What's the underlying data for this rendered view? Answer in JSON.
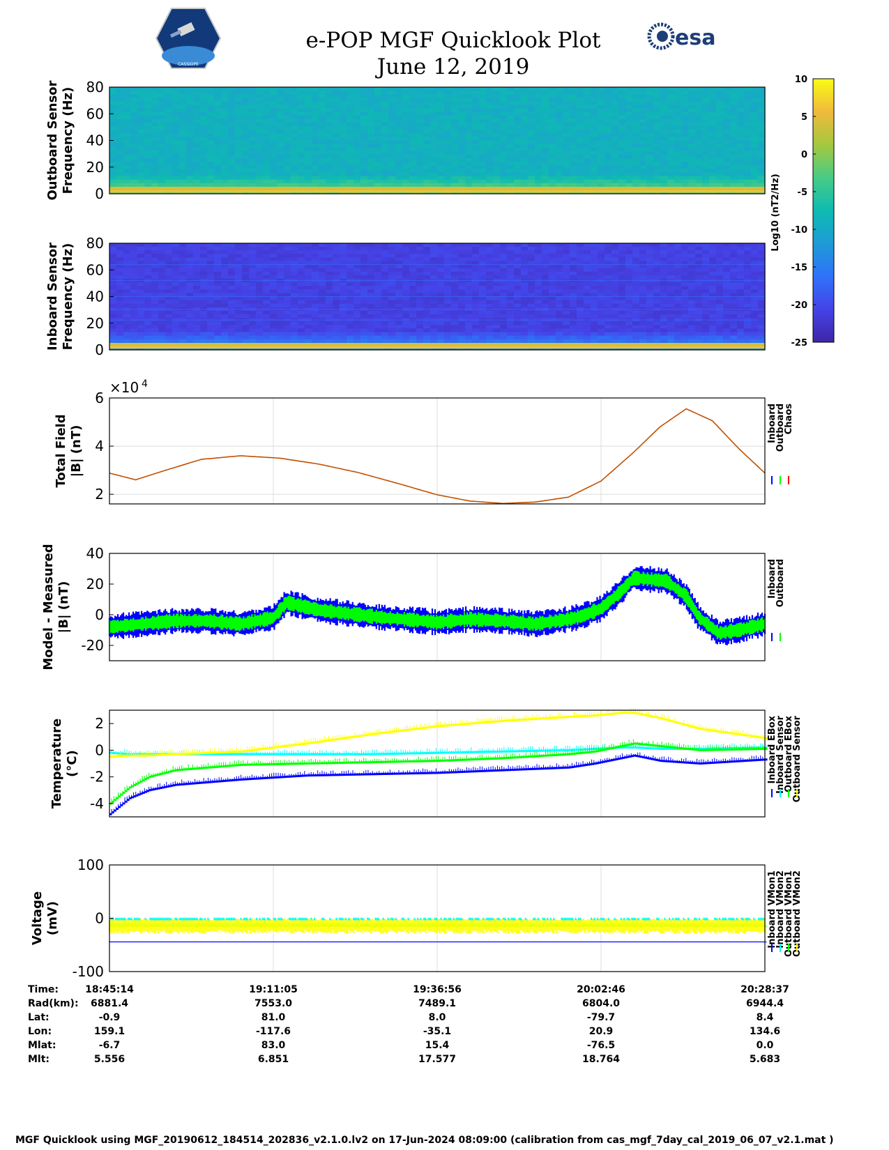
{
  "header": {
    "title": "e-POP MGF Quicklook Plot",
    "date": "June 12, 2019",
    "logo_left_text": "CASSIOPE",
    "logo_right_text": "esa"
  },
  "colorbar": {
    "ticks": [
      "10",
      "5",
      "0",
      "-5",
      "-10",
      "-15",
      "-20",
      "-25"
    ],
    "label": "Log10 (nT2/Hz)",
    "colormap": [
      "#3e26a8",
      "#4543e8",
      "#2f72f9",
      "#1e9bd6",
      "#0ebbb1",
      "#48cb86",
      "#a5c83f",
      "#f0ba3c",
      "#f9fb14"
    ]
  },
  "chart_data": [
    {
      "type": "heatmap",
      "id": "outboard-spectrogram",
      "ylabel": "Outboard Sensor Frequency (Hz)",
      "ylabel_lines": [
        "Outboard Sensor",
        "Frequency (Hz)"
      ],
      "yticks": [
        "80",
        "60",
        "40",
        "20",
        "0"
      ],
      "ylim": [
        0,
        80
      ],
      "background_level": -9,
      "low_freq_band_level": 6
    },
    {
      "type": "heatmap",
      "id": "inboard-spectrogram",
      "ylabel": "Inboard Sensor Frequency (Hz)",
      "ylabel_lines": [
        "Inboard Sensor",
        "Frequency (Hz)"
      ],
      "yticks": [
        "80",
        "60",
        "40",
        "20",
        "0"
      ],
      "ylim": [
        0,
        80
      ],
      "background_level": -21,
      "low_freq_band_level": 6
    },
    {
      "type": "line",
      "id": "total-field",
      "ylabel_lines": [
        "Total Field",
        "|B| (nT)"
      ],
      "exponent_label": "×10",
      "exponent_power": "4",
      "yticks": [
        "6",
        "4",
        "2"
      ],
      "ylim": [
        1.6,
        6
      ],
      "legend": [
        "Inboard",
        "Outboard",
        "Chaos"
      ],
      "legend_colors": [
        "#0000ff",
        "#00ff00",
        "#ff0000"
      ],
      "x": [
        0,
        0.04,
        0.08,
        0.14,
        0.2,
        0.26,
        0.32,
        0.38,
        0.44,
        0.5,
        0.55,
        0.6,
        0.65,
        0.7,
        0.75,
        0.8,
        0.84,
        0.88,
        0.92,
        0.96,
        1.0
      ],
      "values": [
        2.88,
        2.6,
        2.95,
        3.45,
        3.6,
        3.5,
        3.25,
        2.9,
        2.45,
        1.98,
        1.72,
        1.62,
        1.68,
        1.88,
        2.55,
        3.75,
        4.8,
        5.55,
        5.05,
        3.9,
        2.88
      ],
      "color": "#c05000"
    },
    {
      "type": "line",
      "id": "model-measured",
      "ylabel_lines": [
        "Model - Measured",
        "|B| (nT)"
      ],
      "yticks": [
        "40",
        "20",
        "0",
        "-20"
      ],
      "ylim": [
        -30,
        40
      ],
      "legend": [
        "Inboard",
        "Outboard"
      ],
      "legend_colors": [
        "#0000ff",
        "#00ff00"
      ],
      "x": [
        0,
        0.05,
        0.1,
        0.15,
        0.2,
        0.25,
        0.27,
        0.3,
        0.32,
        0.36,
        0.42,
        0.48,
        0.5,
        0.55,
        0.6,
        0.65,
        0.7,
        0.72,
        0.75,
        0.78,
        0.8,
        0.85,
        0.88,
        0.9,
        0.93,
        0.96,
        1.0
      ],
      "series": [
        {
          "name": "Inboard",
          "values": [
            -8,
            -6,
            -4,
            -4,
            -6,
            -2,
            8,
            5,
            3,
            1,
            -2,
            -4,
            -5,
            -3,
            -4,
            -6,
            -3,
            -1,
            4,
            15,
            24,
            22,
            12,
            -2,
            -12,
            -10,
            -6
          ],
          "spread": 7,
          "color": "#0000ff"
        },
        {
          "name": "Outboard",
          "values": [
            -8,
            -6,
            -4,
            -4,
            -6,
            -2,
            8,
            5,
            3,
            1,
            -2,
            -4,
            -5,
            -3,
            -4,
            -6,
            -3,
            -1,
            4,
            15,
            24,
            22,
            12,
            -2,
            -12,
            -10,
            -6
          ],
          "spread": 4,
          "color": "#00ff00"
        }
      ]
    },
    {
      "type": "line",
      "id": "temperature",
      "ylabel_lines": [
        "Temperature",
        "(°C)"
      ],
      "yticks": [
        "2",
        "0",
        "-2",
        "-4"
      ],
      "ylim": [
        -5,
        3
      ],
      "legend": [
        "Inboard EBox",
        "Inboard Sensor",
        "Outboard EBox",
        "Outboard Sensor"
      ],
      "legend_colors": [
        "#0000ff",
        "#00ffff",
        "#00ff00",
        "#ffff00"
      ],
      "x": [
        0,
        0.03,
        0.06,
        0.1,
        0.15,
        0.2,
        0.3,
        0.4,
        0.5,
        0.6,
        0.7,
        0.74,
        0.78,
        0.8,
        0.84,
        0.9,
        1.0
      ],
      "series": [
        {
          "name": "Inboard EBox",
          "values": [
            -4.8,
            -3.6,
            -3.0,
            -2.6,
            -2.4,
            -2.2,
            -1.9,
            -1.8,
            -1.7,
            -1.5,
            -1.3,
            -1.0,
            -0.6,
            -0.4,
            -0.8,
            -1.0,
            -0.7
          ],
          "color": "#0000ff"
        },
        {
          "name": "Inboard Sensor",
          "values": [
            -0.2,
            -0.3,
            -0.3,
            -0.3,
            -0.3,
            -0.3,
            -0.3,
            -0.3,
            -0.2,
            -0.1,
            0.0,
            0.1,
            0.2,
            0.2,
            0.1,
            0.1,
            0.2
          ],
          "color": "#00ffff"
        },
        {
          "name": "Outboard EBox",
          "values": [
            -4.0,
            -2.8,
            -2.0,
            -1.5,
            -1.3,
            -1.1,
            -1.0,
            -0.9,
            -0.8,
            -0.6,
            -0.3,
            -0.1,
            0.3,
            0.5,
            0.3,
            0.0,
            0.1
          ],
          "color": "#00ff00"
        },
        {
          "name": "Outboard Sensor",
          "values": [
            -0.5,
            -0.4,
            -0.4,
            -0.3,
            -0.2,
            -0.1,
            0.5,
            1.2,
            1.8,
            2.2,
            2.5,
            2.6,
            2.8,
            2.8,
            2.4,
            1.6,
            0.9
          ],
          "color": "#ffff00"
        }
      ]
    },
    {
      "type": "line",
      "id": "voltage",
      "ylabel_lines": [
        "Voltage",
        "(mV)"
      ],
      "yticks": [
        "100",
        "0",
        "-100"
      ],
      "ylim": [
        -100,
        100
      ],
      "legend": [
        "Inboard VMon1",
        "Inboard VMon2",
        "Outboard VMon1",
        "Outboard VMon2"
      ],
      "legend_colors": [
        "#0000ff",
        "#00ffff",
        "#00ff00",
        "#ffff00"
      ],
      "series": [
        {
          "name": "Inboard VMon1",
          "level": -44,
          "color": "#0000ff"
        },
        {
          "name": "Inboard VMon2",
          "level": -1,
          "color": "#00ffff"
        },
        {
          "name": "Outboard VMon1",
          "level": -12,
          "color": "#00ff00"
        },
        {
          "name": "Outboard VMon2",
          "level": -14,
          "color": "#ffff00"
        }
      ]
    }
  ],
  "ephemeris": {
    "labels": [
      "Time:",
      "Rad(km):",
      "Lat:",
      "Lon:",
      "Mlat:",
      "Mlt:"
    ],
    "columns": [
      [
        "18:45:14",
        "6881.4",
        "-0.9",
        "159.1",
        "-6.7",
        "5.556"
      ],
      [
        "19:11:05",
        "7553.0",
        "81.0",
        "-117.6",
        "83.0",
        "6.851"
      ],
      [
        "19:36:56",
        "7489.1",
        "8.0",
        "-35.1",
        "15.4",
        "17.577"
      ],
      [
        "20:02:46",
        "6804.0",
        "-79.7",
        "20.9",
        "-76.5",
        "18.764"
      ],
      [
        "20:28:37",
        "6944.4",
        "8.4",
        "134.6",
        "0.0",
        "5.683"
      ]
    ]
  },
  "footer": "MGF Quicklook using MGF_20190612_184514_202836_v2.1.0.lv2 on 17-Jun-2024 08:09:00 (calibration from cas_mgf_7day_cal_2019_06_07_v2.1.mat )"
}
